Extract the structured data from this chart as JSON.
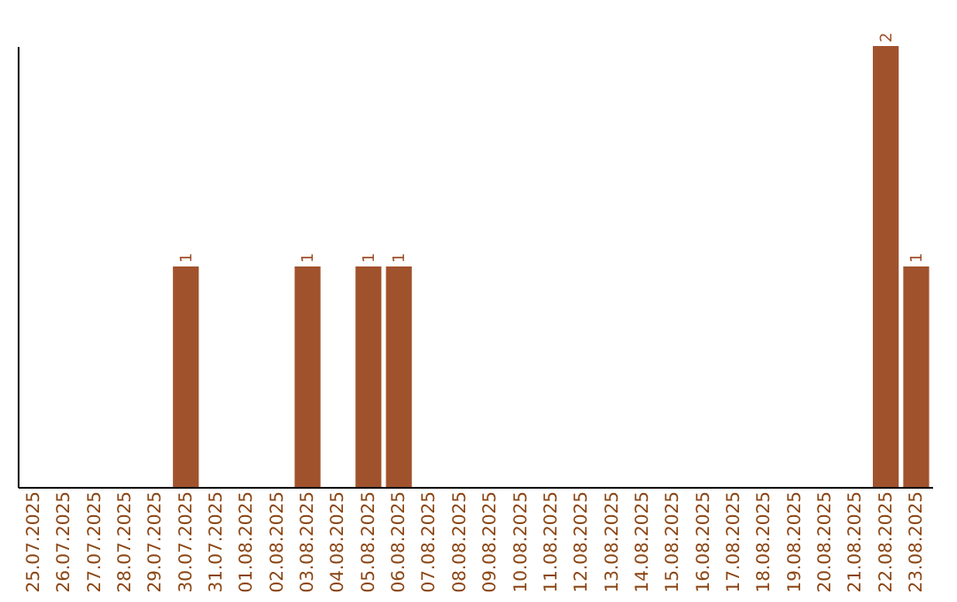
{
  "chart_data": {
    "type": "bar",
    "categories": [
      "25.07.2025",
      "26.07.2025",
      "27.07.2025",
      "28.07.2025",
      "29.07.2025",
      "30.07.2025",
      "31.07.2025",
      "01.08.2025",
      "02.08.2025",
      "03.08.2025",
      "04.08.2025",
      "05.08.2025",
      "06.08.2025",
      "07.08.2025",
      "08.08.2025",
      "09.08.2025",
      "10.08.2025",
      "11.08.2025",
      "12.08.2025",
      "13.08.2025",
      "14.08.2025",
      "15.08.2025",
      "16.08.2025",
      "17.08.2025",
      "18.08.2025",
      "19.08.2025",
      "20.08.2025",
      "21.08.2025",
      "22.08.2025",
      "23.08.2025"
    ],
    "values": [
      0,
      0,
      0,
      0,
      0,
      1,
      0,
      0,
      0,
      1,
      0,
      1,
      1,
      0,
      0,
      0,
      0,
      0,
      0,
      0,
      0,
      0,
      0,
      0,
      0,
      0,
      0,
      0,
      2,
      1
    ],
    "value_labels": [
      null,
      null,
      null,
      null,
      null,
      "1",
      null,
      null,
      null,
      "1",
      null,
      "1",
      "1",
      null,
      null,
      null,
      null,
      null,
      null,
      null,
      null,
      null,
      null,
      null,
      null,
      null,
      null,
      null,
      "2",
      "1"
    ],
    "color": "#a0522d",
    "tick_labels": "x",
    "grid": false
  }
}
